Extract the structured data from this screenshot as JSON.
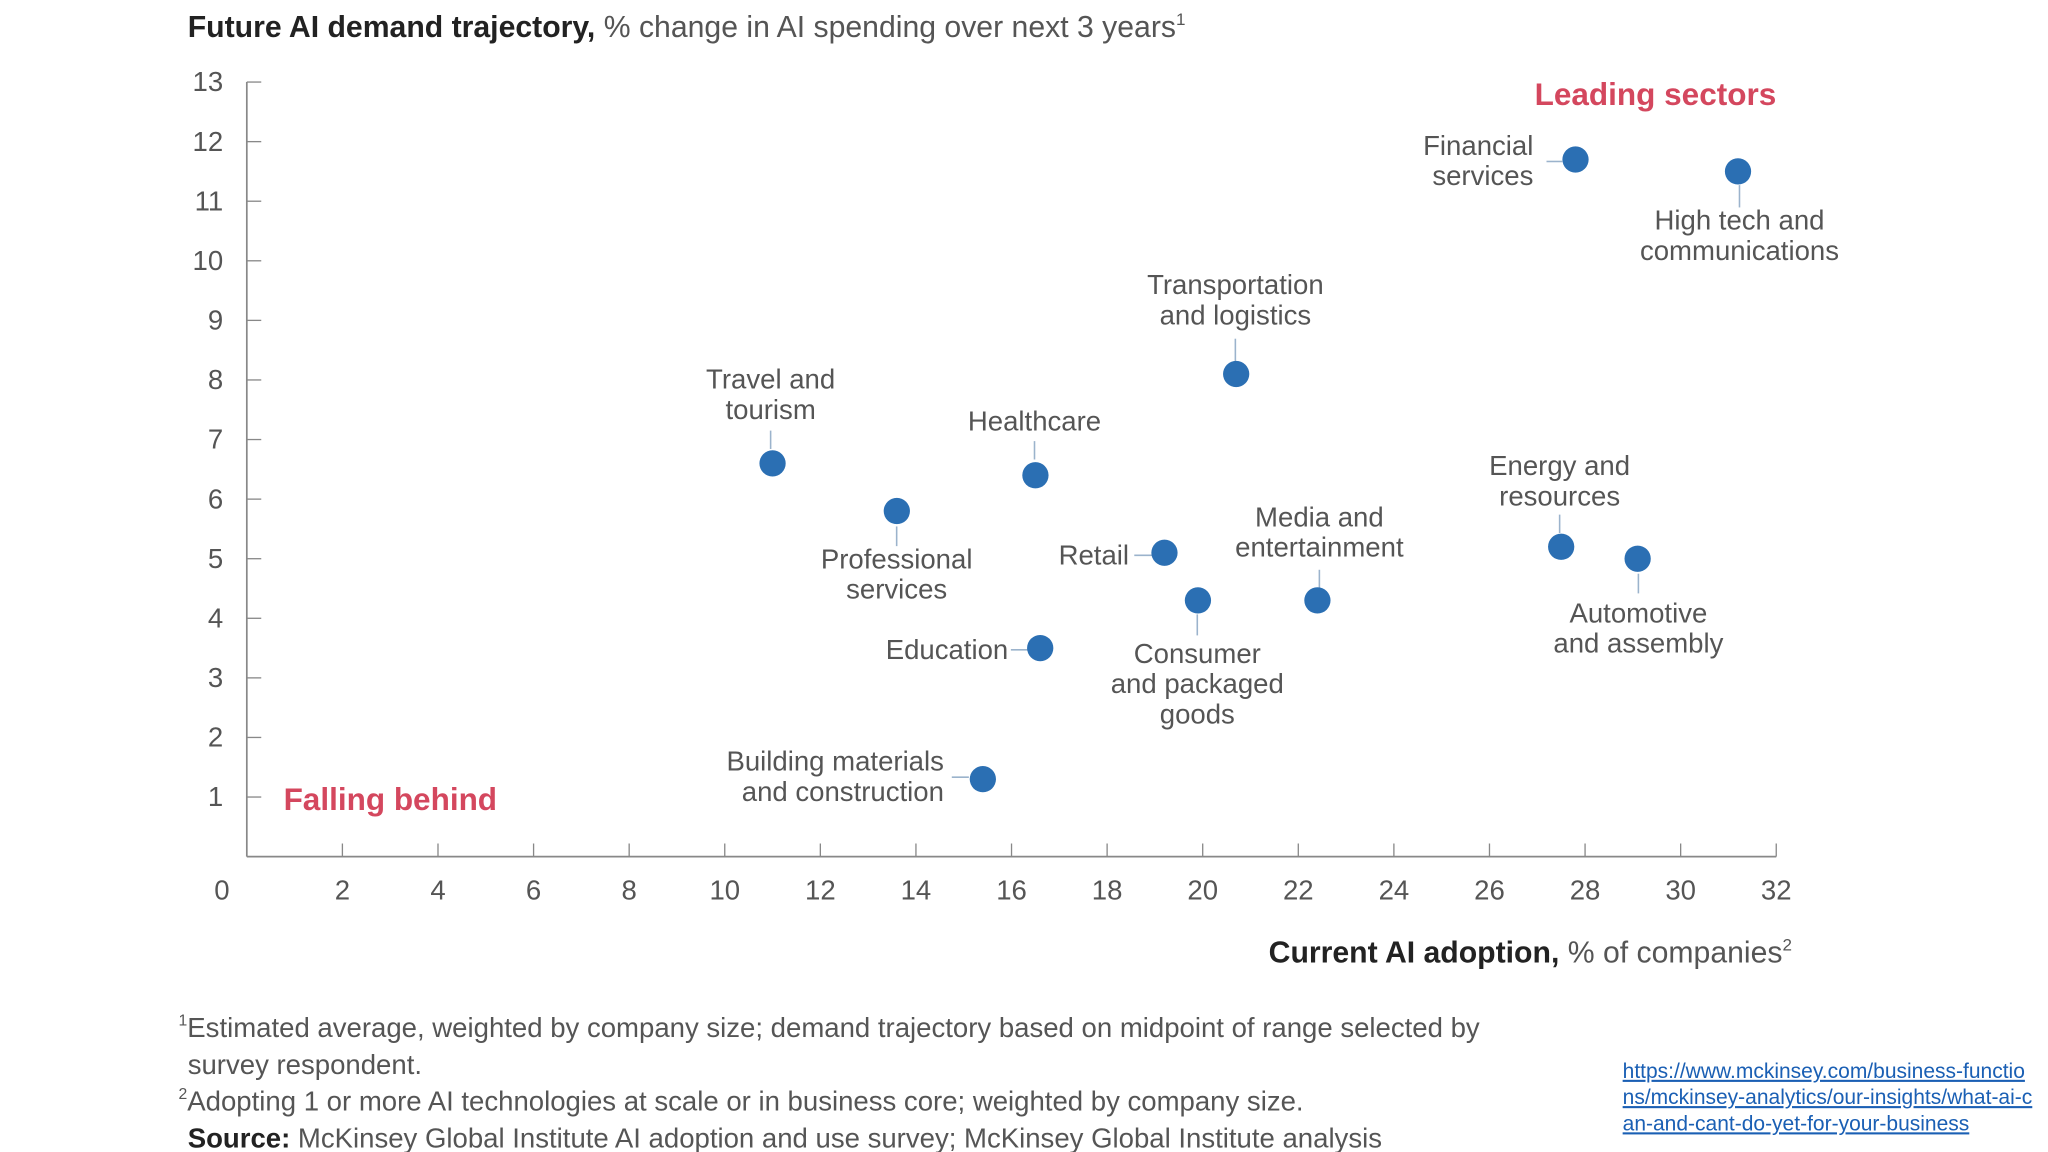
{
  "chart_data": {
    "type": "scatter",
    "title_bold": "Future AI demand trajectory,",
    "title_rest": " % change in AI spending over next 3 years",
    "title_sup": "1",
    "xlabel_bold": "Current AI adoption,",
    "xlabel_rest": " % of companies",
    "xlabel_sup": "2",
    "xlim": [
      0,
      32
    ],
    "ylim": [
      0,
      13
    ],
    "xticks": [
      "0",
      "2",
      "4",
      "6",
      "8",
      "10",
      "12",
      "14",
      "16",
      "18",
      "20",
      "22",
      "24",
      "26",
      "28",
      "30",
      "32"
    ],
    "yticks": [
      "1",
      "2",
      "3",
      "4",
      "5",
      "6",
      "7",
      "8",
      "9",
      "10",
      "11",
      "12",
      "13"
    ],
    "grid": false,
    "point_color": "#2b6fb3",
    "annotation_color": "#d4475e",
    "annotations": {
      "top_right": "Leading sectors",
      "bottom_left": "Falling behind"
    },
    "points": [
      {
        "label": [
          "Financial",
          "services"
        ],
        "x": 27.8,
        "y": 11.7
      },
      {
        "label": [
          "High tech and",
          "communications"
        ],
        "x": 31.2,
        "y": 11.5
      },
      {
        "label": [
          "Transportation",
          "and logistics"
        ],
        "x": 20.7,
        "y": 8.1
      },
      {
        "label": [
          "Travel and",
          "tourism"
        ],
        "x": 11.0,
        "y": 6.6
      },
      {
        "label": [
          "Healthcare"
        ],
        "x": 16.5,
        "y": 6.4
      },
      {
        "label": [
          "Professional",
          "services"
        ],
        "x": 13.6,
        "y": 5.8
      },
      {
        "label": [
          "Retail"
        ],
        "x": 19.2,
        "y": 5.1
      },
      {
        "label": [
          "Consumer",
          "and packaged",
          "goods"
        ],
        "x": 19.9,
        "y": 4.3
      },
      {
        "label": [
          "Media and",
          "entertainment"
        ],
        "x": 22.4,
        "y": 4.3
      },
      {
        "label": [
          "Energy and",
          "resources"
        ],
        "x": 27.5,
        "y": 5.2
      },
      {
        "label": [
          "Automotive",
          "and assembly"
        ],
        "x": 29.1,
        "y": 5.0
      },
      {
        "label": [
          "Education"
        ],
        "x": 16.6,
        "y": 3.5
      },
      {
        "label": [
          "Building materials",
          "and construction"
        ],
        "x": 15.4,
        "y": 1.3
      }
    ]
  },
  "footnotes": {
    "note1_sup": "1",
    "note1_line1": "Estimated average, weighted by company size; demand trajectory based on midpoint of range selected by",
    "note1_line2": "survey respondent.",
    "note2_sup": "2",
    "note2": "Adopting 1 or more AI technologies at scale or in business core; weighted by company size.",
    "source_label": "Source:",
    "source_text": " McKinsey Global Institute AI adoption and use survey; McKinsey Global Institute analysis"
  },
  "link": {
    "lines": [
      "https://www.mckinsey.com/business-functio",
      "ns/mckinsey-analytics/our-insights/what-ai-c",
      "an-and-cant-do-yet-for-your-business"
    ]
  }
}
